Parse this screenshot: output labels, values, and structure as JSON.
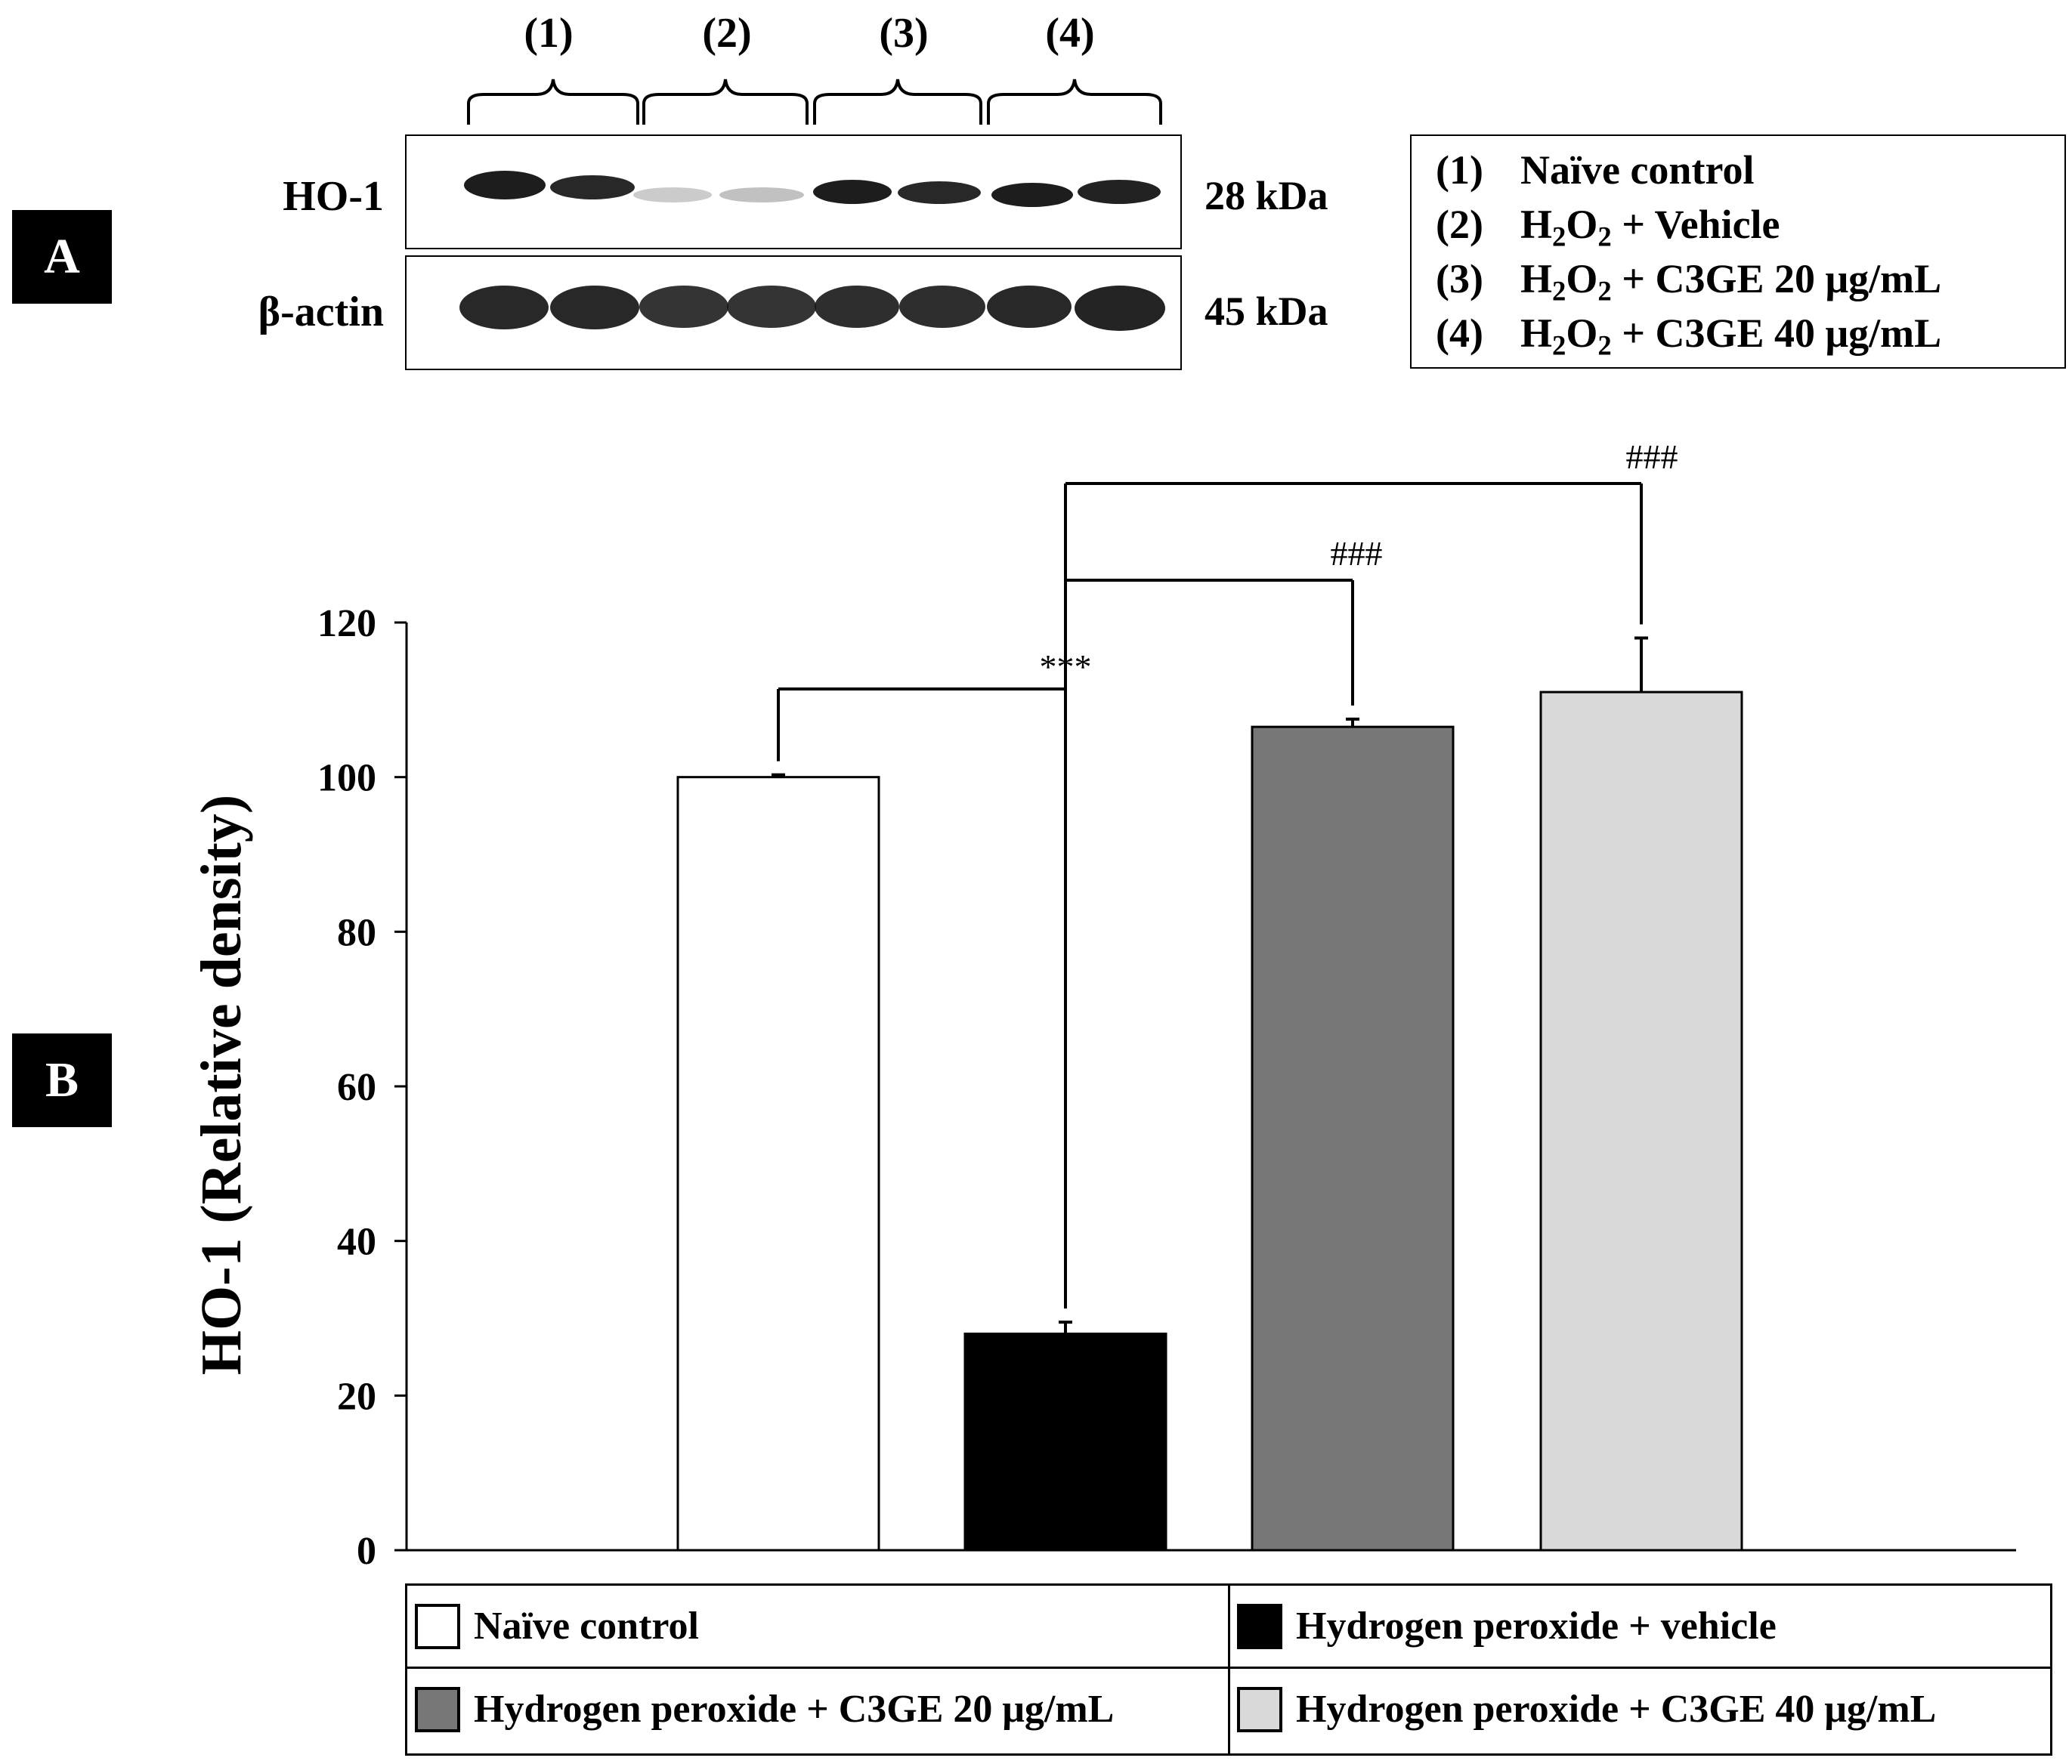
{
  "panel_a": {
    "badge": "A",
    "lanes": [
      "(1)",
      "(2)",
      "(3)",
      "(4)"
    ],
    "blots": [
      {
        "label": "HO-1",
        "size": "28 kDa"
      },
      {
        "label": "β-actin",
        "size": "45 kDa"
      }
    ],
    "legend": [
      {
        "num": "(1)",
        "text": "Naïve control"
      },
      {
        "num": "(2)",
        "pre": "H",
        "sub1": "2",
        "mid": "O",
        "sub2": "2",
        "post": " + Vehicle"
      },
      {
        "num": "(3)",
        "pre": "H",
        "sub1": "2",
        "mid": "O",
        "sub2": "2",
        "post": " + C3GE 20 μg/mL"
      },
      {
        "num": "(4)",
        "pre": "H",
        "sub1": "2",
        "mid": "O",
        "sub2": "2",
        "post": " + C3GE 40 μg/mL"
      }
    ]
  },
  "panel_b": {
    "badge": "B"
  },
  "colors": {
    "naive": "#ffffff",
    "vehicle": "#000000",
    "c3ge20": "#777777",
    "c3ge40": "#d9d9d9"
  },
  "chart_data": {
    "type": "bar",
    "title": "",
    "xlabel": "",
    "ylabel": "HO-1 (Relative density)",
    "ylim": [
      0,
      120
    ],
    "yticks": [
      0,
      20,
      40,
      60,
      80,
      100,
      120
    ],
    "categories": [
      "Naïve control",
      "Hydrogen peroxide + vehicle",
      "Hydrogen peroxide + C3GE 20 μg/mL",
      "Hydrogen peroxide + C3GE 40 μg/mL"
    ],
    "values": [
      100,
      28,
      106.5,
      111
    ],
    "errors": [
      0.3,
      1.5,
      1.0,
      7.0
    ],
    "fills": [
      "#ffffff",
      "#000000",
      "#777777",
      "#d9d9d9"
    ],
    "annotations": [
      {
        "text": "***",
        "from": 0,
        "to": 1
      },
      {
        "text": "###",
        "from": 1,
        "to": 2
      },
      {
        "text": "###",
        "from": 1,
        "to": 3
      }
    ],
    "legend": [
      "Naïve control",
      "Hydrogen peroxide + vehicle",
      "Hydrogen peroxide + C3GE 20 μg/mL",
      "Hydrogen peroxide + C3GE 40 μg/mL"
    ],
    "legend_position": "bottom"
  }
}
